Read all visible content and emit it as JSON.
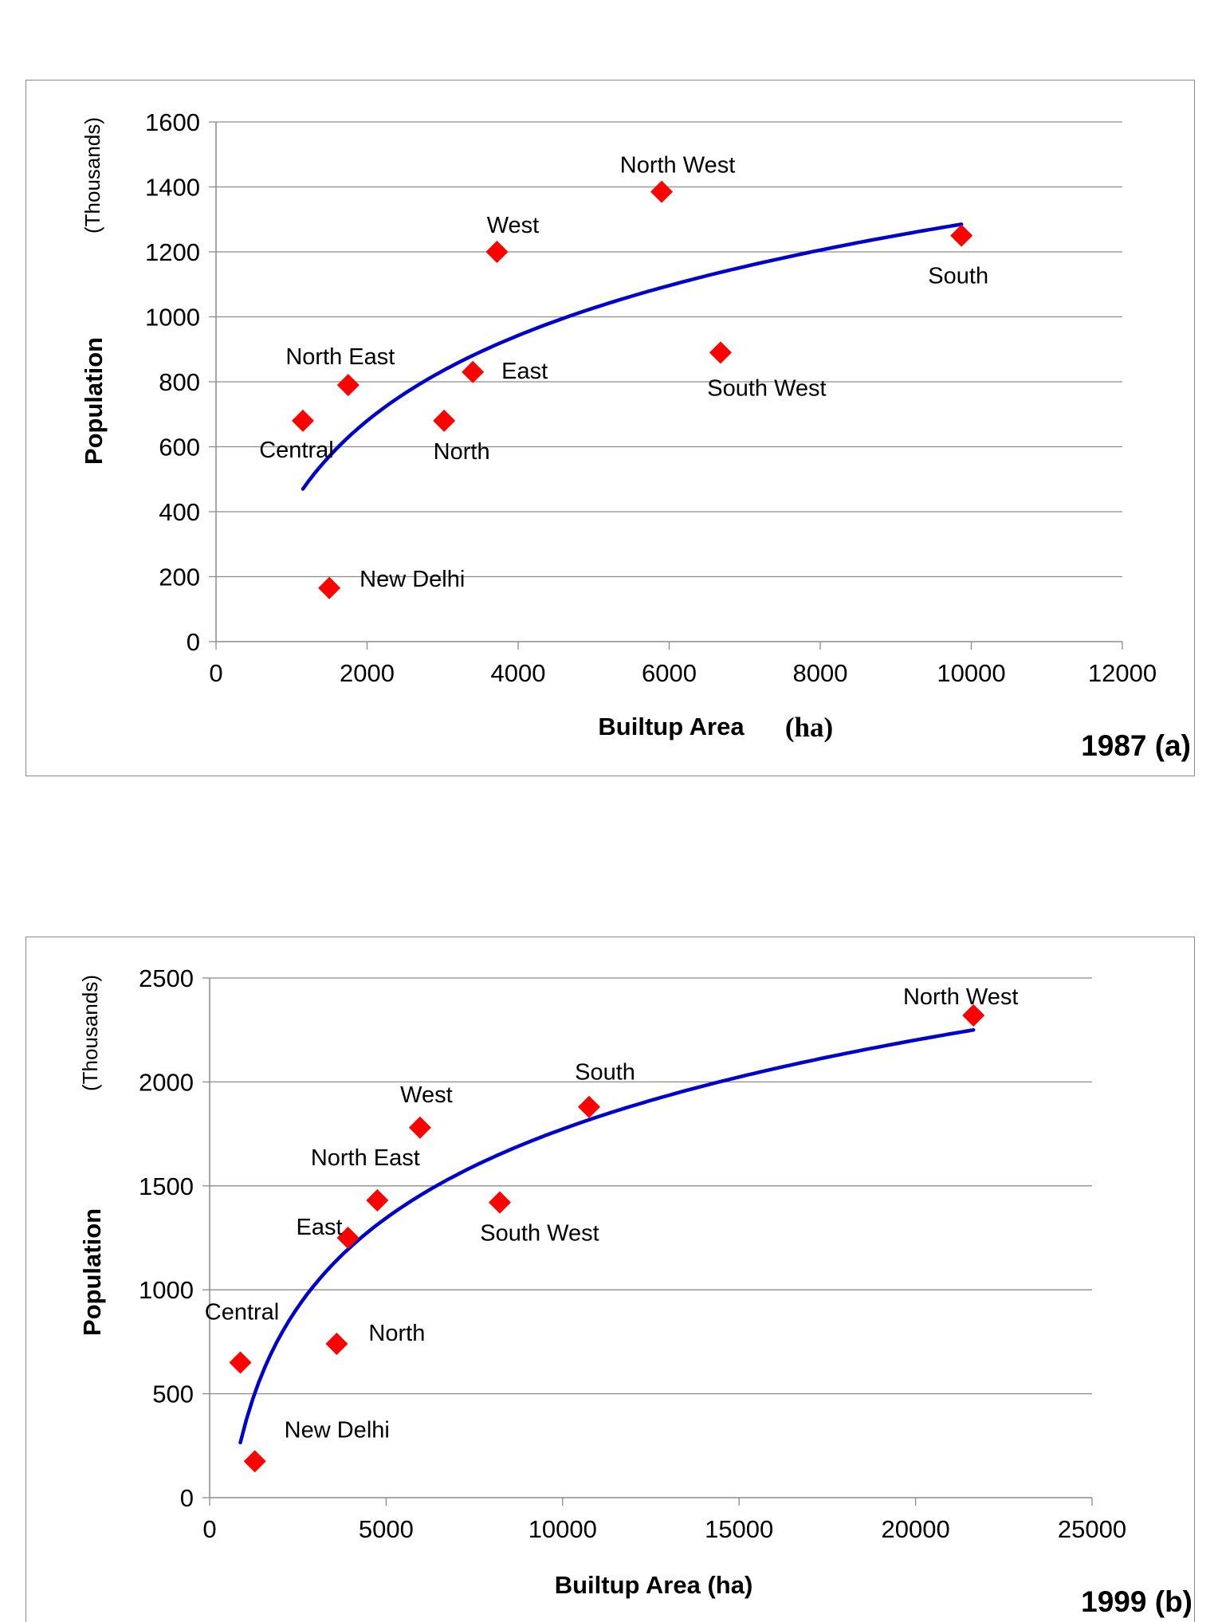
{
  "chart_data": [
    {
      "type": "scatter",
      "caption": "1987 (a)",
      "xlabel": "Builtup Area",
      "xunit": "(ha)",
      "ylabel": "Population",
      "yunit": "(Thousands)",
      "xlim": [
        0,
        12000
      ],
      "ylim": [
        0,
        1600
      ],
      "xticks": [
        0,
        2000,
        4000,
        6000,
        8000,
        10000,
        12000
      ],
      "yticks": [
        0,
        200,
        400,
        600,
        800,
        1000,
        1200,
        1400,
        1600
      ],
      "grid": "horizontal",
      "marker_color": "#ff0000",
      "trend_color": "#0000cc",
      "points": [
        {
          "label": "Central",
          "x": 1150,
          "y": 680
        },
        {
          "label": "New Delhi",
          "x": 1500,
          "y": 165
        },
        {
          "label": "North East",
          "x": 1750,
          "y": 790
        },
        {
          "label": "North",
          "x": 3020,
          "y": 680
        },
        {
          "label": "East",
          "x": 3400,
          "y": 830
        },
        {
          "label": "West",
          "x": 3720,
          "y": 1200
        },
        {
          "label": "North West",
          "x": 5900,
          "y": 1385
        },
        {
          "label": "South West",
          "x": 6680,
          "y": 890
        },
        {
          "label": "South",
          "x": 9870,
          "y": 1250
        }
      ],
      "trendline": {
        "type": "log",
        "x_start": 1150,
        "x_end": 9870,
        "y_at_start": 470,
        "y_at_end": 1285
      }
    },
    {
      "type": "scatter",
      "caption": "1999 (b)",
      "xlabel": "Builtup Area (ha)",
      "xunit": "",
      "ylabel": "Population",
      "yunit": "(Thousands)",
      "xlim": [
        0,
        25000
      ],
      "ylim": [
        0,
        2500
      ],
      "xticks": [
        0,
        5000,
        10000,
        15000,
        20000,
        25000
      ],
      "yticks": [
        0,
        500,
        1000,
        1500,
        2000,
        2500
      ],
      "grid": "horizontal",
      "marker_color": "#ff0000",
      "trend_color": "#0000cc",
      "points": [
        {
          "label": "Central",
          "x": 870,
          "y": 650
        },
        {
          "label": "New Delhi",
          "x": 1280,
          "y": 175
        },
        {
          "label": "North",
          "x": 3600,
          "y": 740
        },
        {
          "label": "East",
          "x": 3920,
          "y": 1250
        },
        {
          "label": "North East",
          "x": 4750,
          "y": 1430
        },
        {
          "label": "West",
          "x": 5960,
          "y": 1780
        },
        {
          "label": "South West",
          "x": 8220,
          "y": 1420
        },
        {
          "label": "South",
          "x": 10750,
          "y": 1880
        },
        {
          "label": "North West",
          "x": 21640,
          "y": 2320
        }
      ],
      "trendline": {
        "type": "log",
        "x_start": 870,
        "x_end": 21640,
        "y_at_start": 265,
        "y_at_end": 2250
      }
    }
  ]
}
